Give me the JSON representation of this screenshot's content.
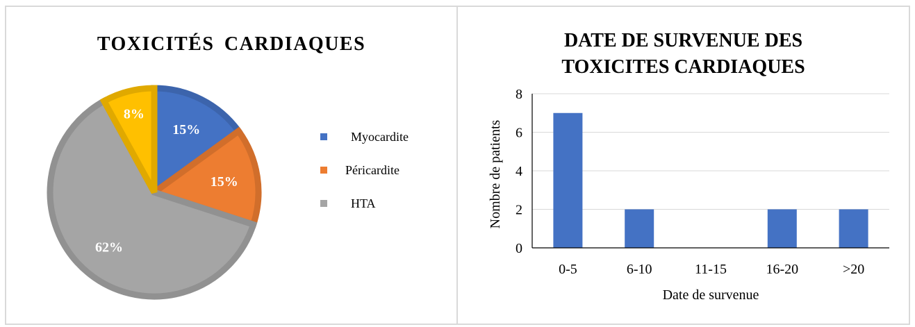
{
  "chart_data": [
    {
      "type": "pie",
      "title": "TOXICITÉS CARDIAQUES",
      "slices": [
        {
          "name": "Myocardite",
          "value": 15,
          "label": "15%",
          "color": "#4472C4"
        },
        {
          "name": "Péricardite",
          "value": 15,
          "label": "15%",
          "color": "#ED7D31"
        },
        {
          "name": "HTA",
          "value": 62,
          "label": "62%",
          "color": "#A5A5A5"
        },
        {
          "name": "",
          "value": 8,
          "label": "8%",
          "color": "#FFC000"
        }
      ],
      "legend": [
        "Myocardite",
        "Péricardite",
        "HTA"
      ],
      "legend_position": "right"
    },
    {
      "type": "bar",
      "title_lines": [
        "DATE DE SURVENUE DES",
        "TOXICITES CARDIAQUES"
      ],
      "categories": [
        "0-5",
        "6-10",
        "11-15",
        "16-20",
        ">20"
      ],
      "values": [
        7,
        2,
        0,
        2,
        2
      ],
      "xlabel": "Date de survenue",
      "ylabel": "Nombre de patients",
      "ylim": [
        0,
        8
      ],
      "yticks": [
        "0",
        "2",
        "4",
        "6",
        "8"
      ],
      "grid": true,
      "bar_color": "#4472C4"
    }
  ]
}
